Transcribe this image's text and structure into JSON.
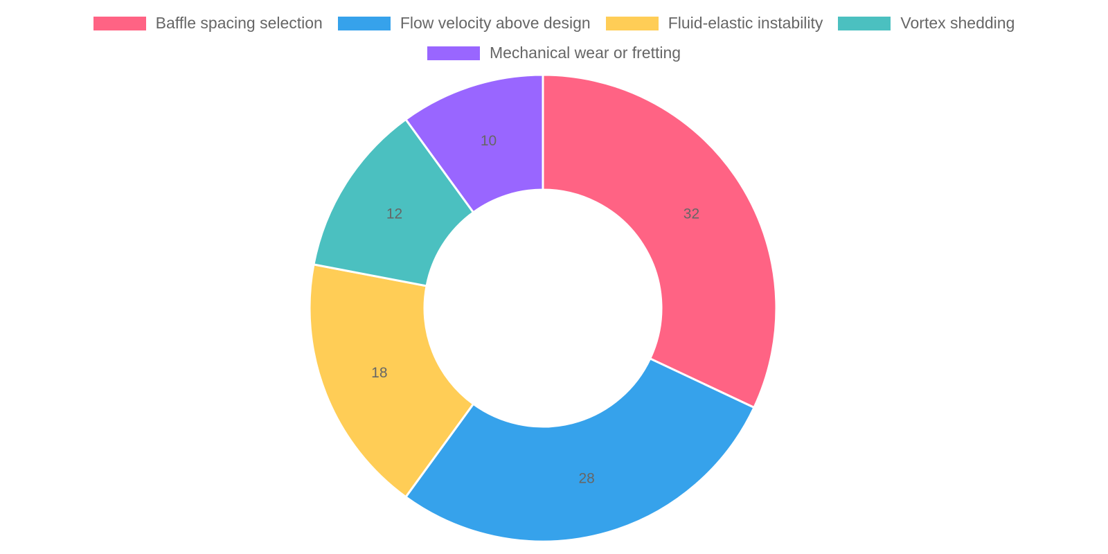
{
  "chart_data": {
    "type": "pie",
    "variant": "doughnut",
    "categories": [
      "Baffle spacing selection",
      "Flow velocity above design",
      "Fluid-elastic instability",
      "Vortex shedding",
      "Mechanical wear or fretting"
    ],
    "values": [
      32,
      28,
      18,
      12,
      10
    ],
    "colors": [
      "#ff6384",
      "#36a2eb",
      "#ffcd56",
      "#4bc0c0",
      "#9966ff"
    ],
    "data_labels": [
      "32",
      "28",
      "18",
      "12",
      "10"
    ],
    "legend_position": "top",
    "title": ""
  }
}
